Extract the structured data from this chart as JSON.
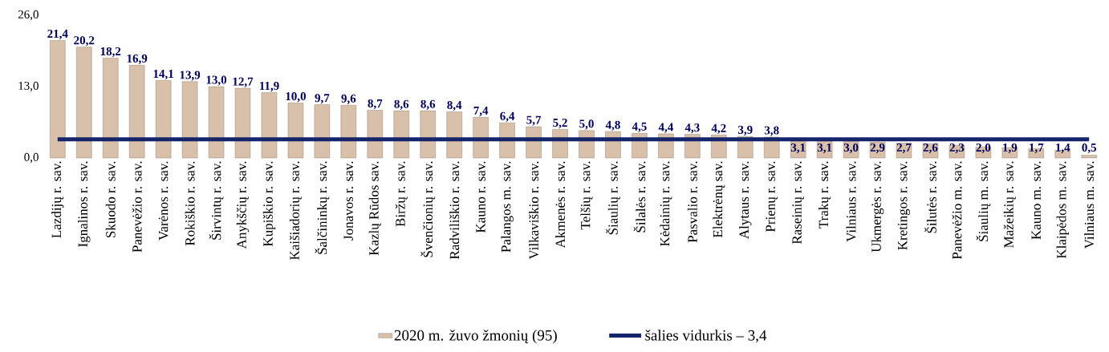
{
  "chart_data": {
    "type": "bar",
    "categories": [
      "Lazdijų r. sav.",
      "Ignalinos r. sav.",
      "Skuodo r. sav.",
      "Panevėžio r. sav.",
      "Varėnos r. sav.",
      "Rokiškio r. sav.",
      "Širvintų r. sav.",
      "Anykščių r. sav.",
      "Kupiškio r. sav.",
      "Kaišiadorių r. sav.",
      "Šalčininkų r. sav.",
      "Jonavos r. sav.",
      "Kazlų Rūdos sav.",
      "Biržų r. sav.",
      "Švenčionių r. sav.",
      "Radviliškio r. sav.",
      "Kauno r. sav.",
      "Palangos m. sav.",
      "Vilkaviškio r. sav.",
      "Akmenės r. sav.",
      "Telšių r. sav.",
      "Šiaulių r. sav.",
      "Šilalės r. sav.",
      "Kėdainių r. sav.",
      "Pasvalio r. sav.",
      "Elektrėnų sav.",
      "Alytaus r. sav.",
      "Prienų r. sav.",
      "Raseinių r. sav.",
      "Trakų r. sav.",
      "Vilniaus r. sav.",
      "Ukmergės r. sav.",
      "Kretingos r. sav.",
      "Šilutės r. sav.",
      "Panevėžio m. sav.",
      "Šiaulių m. sav.",
      "Mažeikių r. sav.",
      "Kauno m. sav.",
      "Klaipėdos m. sav.",
      "Vilniaus m. sav."
    ],
    "series": [
      {
        "name": "2020 m. žuvo žmonių (95)",
        "color": "#d8c0aa",
        "values": [
          21.4,
          20.2,
          18.2,
          16.9,
          14.1,
          13.9,
          13.0,
          12.7,
          11.9,
          10.0,
          9.7,
          9.6,
          8.7,
          8.6,
          8.6,
          8.4,
          7.4,
          6.4,
          5.7,
          5.2,
          5.0,
          4.8,
          4.5,
          4.4,
          4.3,
          4.2,
          3.9,
          3.8,
          3.1,
          3.1,
          3.0,
          2.9,
          2.7,
          2.6,
          2.3,
          2.0,
          1.9,
          1.7,
          1.4,
          0.5
        ],
        "value_labels": [
          "21,4",
          "20,2",
          "18,2",
          "16,9",
          "14,1",
          "13,9",
          "13,0",
          "12,7",
          "11,9",
          "10,0",
          "9,7",
          "9,6",
          "8,7",
          "8,6",
          "8,6",
          "8,4",
          "7,4",
          "6,4",
          "5,7",
          "5,2",
          "5,0",
          "4,8",
          "4,5",
          "4,4",
          "4,3",
          "4,2",
          "3,9",
          "3,8",
          "3,1",
          "3,1",
          "3,0",
          "2,9",
          "2,7",
          "2,6",
          "2,3",
          "2,0",
          "1,9",
          "1,7",
          "1,4",
          "0,5"
        ]
      },
      {
        "name": "šalies vidurkis – 3,4",
        "type": "line",
        "color": "#15256b",
        "values": [
          3.4,
          3.4,
          3.4,
          3.4,
          3.4,
          3.4,
          3.4,
          3.4,
          3.4,
          3.4,
          3.4,
          3.4,
          3.4,
          3.4,
          3.4,
          3.4,
          3.4,
          3.4,
          3.4,
          3.4,
          3.4,
          3.4,
          3.4,
          3.4,
          3.4,
          3.4,
          3.4,
          3.4,
          3.4,
          3.4,
          3.4,
          3.4,
          3.4,
          3.4,
          3.4,
          3.4,
          3.4,
          3.4,
          3.4,
          3.4
        ]
      }
    ],
    "marker": "none",
    "ylim": [
      0,
      26
    ],
    "yticks": [
      {
        "value": 0,
        "label": "0,0"
      },
      {
        "value": 13,
        "label": "13,0"
      },
      {
        "value": 26,
        "label": "26,0"
      }
    ],
    "grid": false,
    "legend": "bottom"
  }
}
